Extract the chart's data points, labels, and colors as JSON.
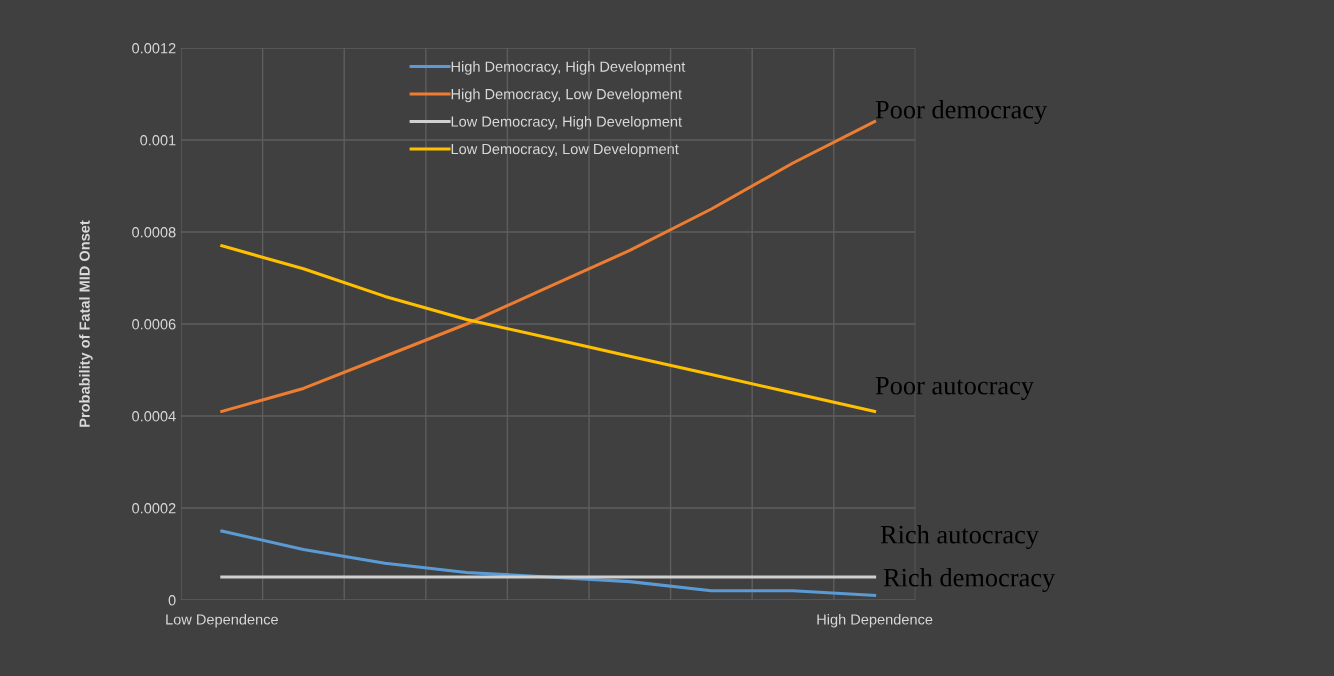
{
  "chart_data": {
    "type": "line",
    "ylabel": "Probability of Fatal MID Onset",
    "categories": [
      "Low Dependence",
      null,
      null,
      null,
      null,
      null,
      null,
      null,
      "High Dependence"
    ],
    "series": [
      {
        "name": "High Democracy, High Development",
        "color": "#5b9bd5",
        "values": [
          0.00015,
          0.00011,
          8e-05,
          6e-05,
          5e-05,
          4e-05,
          2e-05,
          2e-05,
          1e-05
        ]
      },
      {
        "name": "High Democracy, Low Development",
        "color": "#ed7d31",
        "values": [
          0.00041,
          0.00046,
          0.00053,
          0.0006,
          0.00068,
          0.00076,
          0.00085,
          0.00095,
          0.00104
        ]
      },
      {
        "name": "Low Democracy, High Development",
        "color": "#d0d0d0",
        "values": [
          5e-05,
          5e-05,
          5e-05,
          5e-05,
          5e-05,
          5e-05,
          5e-05,
          5e-05,
          5e-05
        ]
      },
      {
        "name": "Low Democracy, Low Development",
        "color": "#ffc000",
        "values": [
          0.00077,
          0.00072,
          0.00066,
          0.00061,
          0.00057,
          0.00053,
          0.00049,
          0.00045,
          0.00041
        ]
      }
    ],
    "ylim": [
      0,
      0.0012
    ],
    "yticks": [
      0,
      0.0002,
      0.0004,
      0.0006,
      0.0008,
      0.001,
      0.0012
    ],
    "grid": true,
    "legend": "top",
    "marker": "none",
    "line_style": "solid",
    "annotations": [
      "Poor democracy",
      "Poor autocracy",
      "Rich autocracy",
      "Rich democracy"
    ]
  }
}
